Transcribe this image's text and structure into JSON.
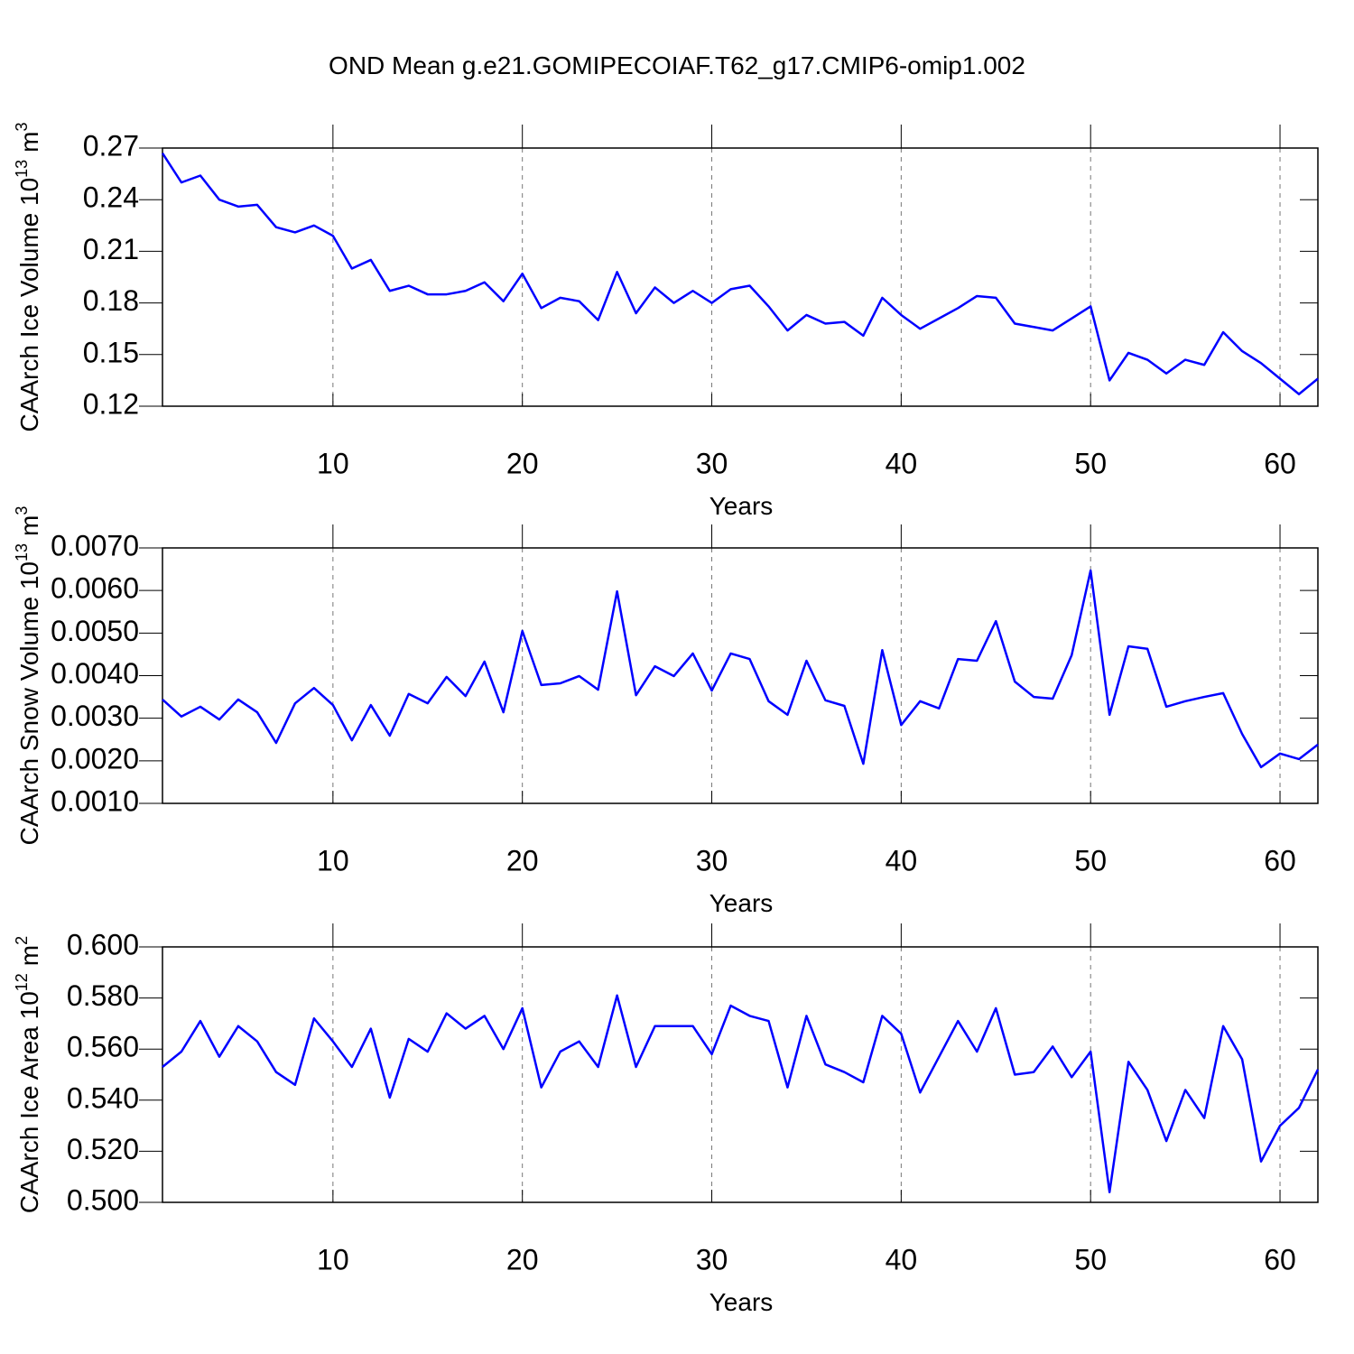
{
  "chart_data": [
    {
      "type": "line",
      "title": "OND Mean g.e21.GOMIPECOIAF.T62_g17.CMIP6-omip1.002",
      "ylabel": "CAArch Ice Volume 10",
      "ylabel_exp": "13",
      "ylabel_unit": "m",
      "ylabel_unit_exp": "3",
      "xlabel": "Years",
      "color": "#0000ff",
      "grid": true,
      "xlim": [
        1,
        62
      ],
      "xticks": [
        10,
        20,
        30,
        40,
        50,
        60
      ],
      "ylim": [
        0.12,
        0.27
      ],
      "yticks": [
        0.12,
        0.15,
        0.18,
        0.21,
        0.24,
        0.27
      ],
      "x": [
        1,
        2,
        3,
        4,
        5,
        6,
        7,
        8,
        9,
        10,
        11,
        12,
        13,
        14,
        15,
        16,
        17,
        18,
        19,
        20,
        21,
        22,
        23,
        24,
        25,
        26,
        27,
        28,
        29,
        30,
        31,
        32,
        33,
        34,
        35,
        36,
        37,
        38,
        39,
        40,
        41,
        42,
        43,
        44,
        45,
        46,
        47,
        48,
        49,
        50,
        51,
        52,
        53,
        54,
        55,
        56,
        57,
        58,
        59,
        60,
        61,
        62
      ],
      "values": [
        0.267,
        0.25,
        0.254,
        0.24,
        0.236,
        0.237,
        0.224,
        0.221,
        0.225,
        0.219,
        0.2,
        0.205,
        0.187,
        0.19,
        0.185,
        0.185,
        0.187,
        0.192,
        0.181,
        0.197,
        0.177,
        0.183,
        0.181,
        0.17,
        0.198,
        0.174,
        0.189,
        0.18,
        0.187,
        0.18,
        0.188,
        0.19,
        0.178,
        0.164,
        0.173,
        0.168,
        0.169,
        0.161,
        0.183,
        0.173,
        0.165,
        0.171,
        0.177,
        0.184,
        0.183,
        0.168,
        0.166,
        0.164,
        0.171,
        0.178,
        0.135,
        0.151,
        0.147,
        0.139,
        0.147,
        0.144,
        0.163,
        0.152,
        0.145,
        0.136,
        0.127,
        0.136
      ]
    },
    {
      "type": "line",
      "ylabel": "CAArch Snow Volume 10",
      "ylabel_exp": "13",
      "ylabel_unit": "m",
      "ylabel_unit_exp": "3",
      "xlabel": "Years",
      "color": "#0000ff",
      "grid": true,
      "xlim": [
        1,
        62
      ],
      "xticks": [
        10,
        20,
        30,
        40,
        50,
        60
      ],
      "ylim": [
        0.001,
        0.007
      ],
      "yticks": [
        {
          "value": 0.001,
          "label": "0.0010"
        },
        {
          "value": 0.002,
          "label": "0.0020"
        },
        {
          "value": 0.003,
          "label": "0.0030"
        },
        {
          "value": 0.004,
          "label": "0.0040"
        },
        {
          "value": 0.005,
          "label": "0.0050"
        },
        {
          "value": 0.006,
          "label": "0.0060"
        },
        {
          "value": 0.007,
          "label": "0.0070"
        }
      ],
      "x": [
        1,
        2,
        3,
        4,
        5,
        6,
        7,
        8,
        9,
        10,
        11,
        12,
        13,
        14,
        15,
        16,
        17,
        18,
        19,
        20,
        21,
        22,
        23,
        24,
        25,
        26,
        27,
        28,
        29,
        30,
        31,
        32,
        33,
        34,
        35,
        36,
        37,
        38,
        39,
        40,
        41,
        42,
        43,
        44,
        45,
        46,
        47,
        48,
        49,
        50,
        51,
        52,
        53,
        54,
        55,
        56,
        57,
        58,
        59,
        60,
        61,
        62
      ],
      "values": [
        0.00344,
        0.00304,
        0.00327,
        0.00297,
        0.00344,
        0.00314,
        0.00242,
        0.00335,
        0.00371,
        0.00331,
        0.00248,
        0.00331,
        0.00259,
        0.00357,
        0.00335,
        0.00397,
        0.00352,
        0.00433,
        0.00314,
        0.00505,
        0.00378,
        0.00382,
        0.00399,
        0.00367,
        0.00598,
        0.00354,
        0.00422,
        0.00399,
        0.00452,
        0.00365,
        0.00452,
        0.00439,
        0.0034,
        0.00308,
        0.00435,
        0.00342,
        0.00329,
        0.00193,
        0.0046,
        0.00284,
        0.0034,
        0.00323,
        0.00439,
        0.00435,
        0.00528,
        0.00386,
        0.0035,
        0.00346,
        0.00448,
        0.00647,
        0.00308,
        0.00469,
        0.00463,
        0.00327,
        0.0034,
        0.0035,
        0.00359,
        0.00263,
        0.00185,
        0.00217,
        0.00204,
        0.00238
      ]
    },
    {
      "type": "line",
      "ylabel": "CAArch Ice Area 10",
      "ylabel_exp": "12",
      "ylabel_unit": "m",
      "ylabel_unit_exp": "2",
      "xlabel": "Years",
      "color": "#0000ff",
      "grid": true,
      "xlim": [
        1,
        62
      ],
      "xticks": [
        10,
        20,
        30,
        40,
        50,
        60
      ],
      "ylim": [
        0.5,
        0.6
      ],
      "yticks": [
        {
          "value": 0.5,
          "label": "0.500"
        },
        {
          "value": 0.52,
          "label": "0.520"
        },
        {
          "value": 0.54,
          "label": "0.540"
        },
        {
          "value": 0.56,
          "label": "0.560"
        },
        {
          "value": 0.58,
          "label": "0.580"
        },
        {
          "value": 0.6,
          "label": "0.600"
        }
      ],
      "x": [
        1,
        2,
        3,
        4,
        5,
        6,
        7,
        8,
        9,
        10,
        11,
        12,
        13,
        14,
        15,
        16,
        17,
        18,
        19,
        20,
        21,
        22,
        23,
        24,
        25,
        26,
        27,
        28,
        29,
        30,
        31,
        32,
        33,
        34,
        35,
        36,
        37,
        38,
        39,
        40,
        41,
        42,
        43,
        44,
        45,
        46,
        47,
        48,
        49,
        50,
        51,
        52,
        53,
        54,
        55,
        56,
        57,
        58,
        59,
        60,
        61,
        62
      ],
      "values": [
        0.553,
        0.559,
        0.571,
        0.557,
        0.569,
        0.563,
        0.551,
        0.546,
        0.572,
        0.563,
        0.553,
        0.568,
        0.541,
        0.564,
        0.559,
        0.574,
        0.568,
        0.573,
        0.56,
        0.576,
        0.545,
        0.559,
        0.563,
        0.553,
        0.581,
        0.553,
        0.569,
        0.569,
        0.569,
        0.558,
        0.577,
        0.573,
        0.571,
        0.545,
        0.573,
        0.554,
        0.551,
        0.547,
        0.573,
        0.566,
        0.543,
        0.557,
        0.571,
        0.559,
        0.576,
        0.55,
        0.551,
        0.561,
        0.549,
        0.559,
        0.504,
        0.555,
        0.544,
        0.524,
        0.544,
        0.533,
        0.569,
        0.556,
        0.516,
        0.53,
        0.537,
        0.552
      ]
    }
  ]
}
